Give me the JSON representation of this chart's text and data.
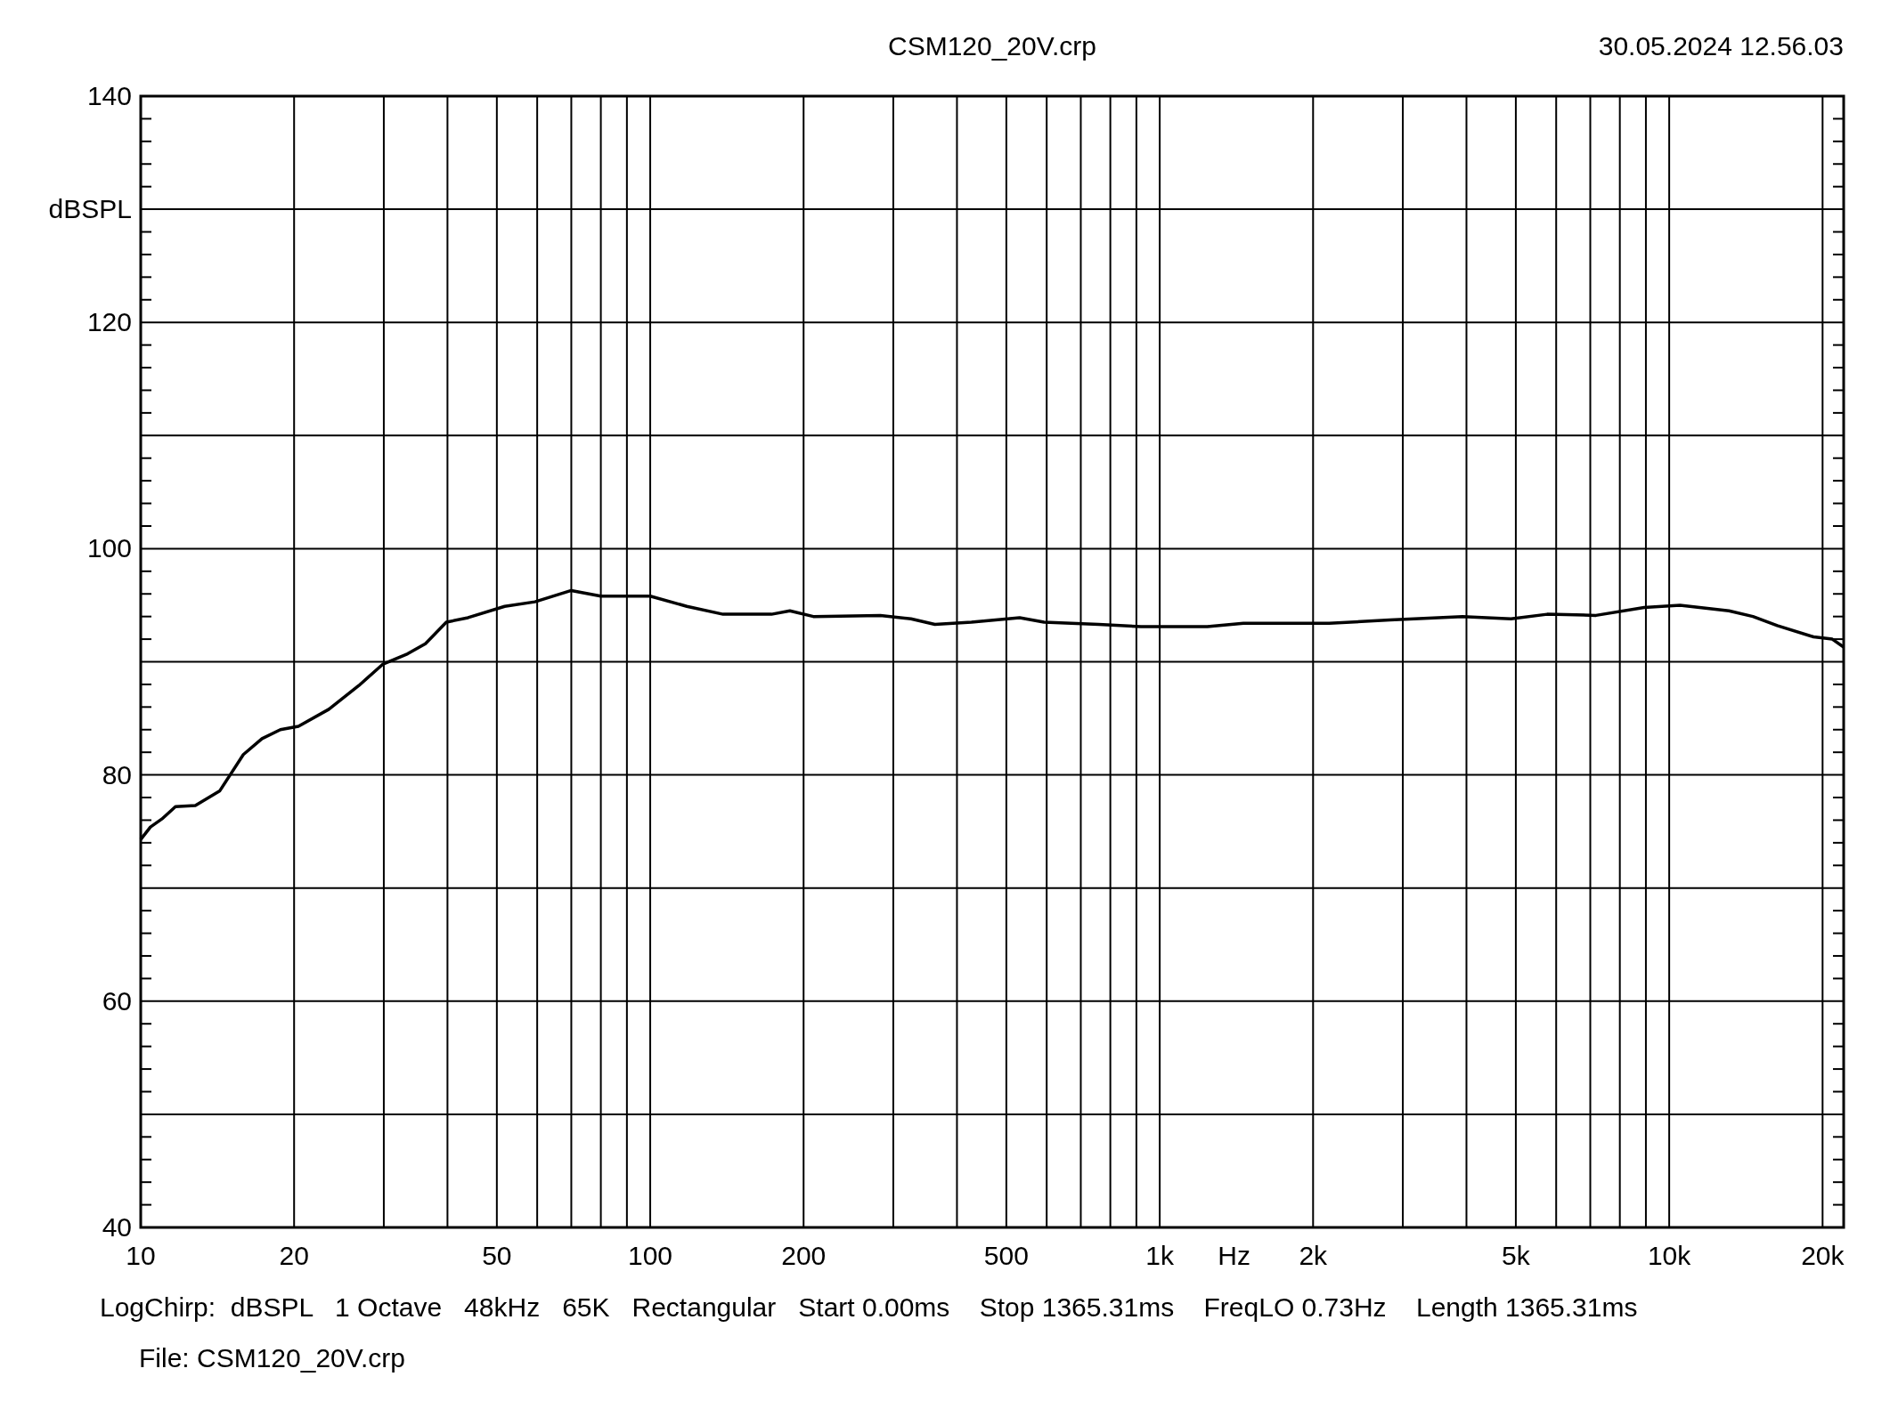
{
  "chart_data": {
    "type": "line",
    "title": "CSM120_20V.crp",
    "xlabel": "Hz",
    "ylabel": "dBSPL",
    "annotations": [
      "30.05.2024 12.56.03",
      "LogChirp:  dBSPL   1 Octave   48kHz   65K   Rectangular   Start 0.00ms    Stop 1365.31ms    FreqLO 0.73Hz    Length 1365.31ms",
      "File: CSM120_20V.crp"
    ],
    "log": "x",
    "grid": true,
    "marker": "none",
    "line_style": "solid",
    "xlim": [
      10,
      22000
    ],
    "xticks": [
      10,
      20,
      {
        "value": 30,
        "label": null
      },
      {
        "value": 40,
        "label": null
      },
      50,
      {
        "value": 60,
        "label": null
      },
      {
        "value": 70,
        "label": null
      },
      {
        "value": 80,
        "label": null
      },
      {
        "value": 90,
        "label": null
      },
      100,
      200,
      {
        "value": 300,
        "label": null
      },
      {
        "value": 400,
        "label": null
      },
      500,
      {
        "value": 600,
        "label": null
      },
      {
        "value": 700,
        "label": null
      },
      {
        "value": 800,
        "label": null
      },
      {
        "value": 900,
        "label": null
      },
      {
        "value": 1000,
        "label": "1k"
      },
      {
        "value": 2000,
        "label": "2k"
      },
      {
        "value": 3000,
        "label": null
      },
      {
        "value": 4000,
        "label": null
      },
      {
        "value": 5000,
        "label": "5k"
      },
      {
        "value": 6000,
        "label": null
      },
      {
        "value": 7000,
        "label": null
      },
      {
        "value": 8000,
        "label": null
      },
      {
        "value": 9000,
        "label": null
      },
      {
        "value": 10000,
        "label": "10k"
      },
      {
        "value": 20000,
        "label": "20k"
      }
    ],
    "ylim": [
      40,
      140
    ],
    "yticks": [
      40,
      {
        "value": 50,
        "label": null
      },
      60,
      {
        "value": 70,
        "label": null
      },
      80,
      {
        "value": 90,
        "label": null
      },
      100,
      {
        "value": 110,
        "label": null
      },
      120,
      {
        "value": 130,
        "label": null
      },
      140
    ],
    "series": [
      {
        "color": "#000000",
        "x": [
          10,
          10.45,
          11.0,
          11.7,
          12.8,
          14.3,
          15.9,
          17.3,
          18.8,
          20.4,
          23.4,
          26.8,
          29.9,
          33.4,
          36.2,
          39.8,
          43.9,
          51.8,
          59.4,
          70,
          80,
          100,
          118,
          139,
          173,
          188,
          209,
          283,
          325,
          362,
          427,
          531,
          593,
          759,
          919,
          1240,
          1460,
          2150,
          2830,
          3930,
          4890,
          5760,
          7180,
          8930,
          10500,
          13100,
          14600,
          16300,
          19200,
          20900,
          22000
        ],
        "values": [
          74.3,
          75.4,
          76.1,
          77.2,
          77.3,
          78.6,
          81.8,
          83.2,
          84.0,
          84.3,
          85.8,
          87.9,
          89.8,
          90.7,
          91.6,
          93.5,
          93.9,
          94.9,
          95.3,
          96.3,
          95.8,
          95.8,
          94.9,
          94.2,
          94.2,
          94.5,
          94.0,
          94.1,
          93.8,
          93.3,
          93.5,
          93.9,
          93.5,
          93.3,
          93.1,
          93.1,
          93.4,
          93.4,
          93.7,
          94.0,
          93.8,
          94.2,
          94.1,
          94.8,
          95.0,
          94.5,
          94.0,
          93.2,
          92.2,
          92.0,
          91.3
        ]
      }
    ]
  }
}
